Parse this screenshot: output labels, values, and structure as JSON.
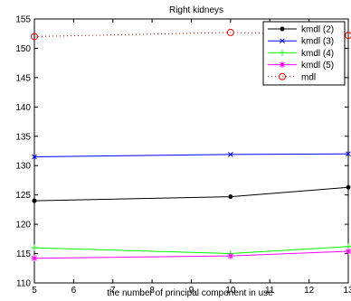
{
  "chart_data": {
    "type": "line",
    "title": "Right kidneys",
    "xlabel": "the number of principal component in use",
    "ylabel": "",
    "xlim": [
      5,
      13
    ],
    "ylim": [
      110,
      155
    ],
    "x_ticks": [
      5,
      6,
      7,
      8,
      9,
      10,
      11,
      12,
      13
    ],
    "y_ticks": [
      110,
      115,
      120,
      125,
      130,
      135,
      140,
      145,
      150,
      155
    ],
    "x_tick_labels": [
      "5",
      "6",
      "7",
      "8",
      "9",
      "10",
      "11",
      "12",
      "13"
    ],
    "y_tick_labels": [
      "110",
      "115",
      "120",
      "125",
      "130",
      "135",
      "140",
      "145",
      "150",
      "155"
    ],
    "grid": false,
    "legend_position": "top-right",
    "x": [
      5,
      10,
      13
    ],
    "series": [
      {
        "name": "kmdl (2)",
        "values": [
          124.0,
          124.7,
          126.3
        ],
        "color": "#000000",
        "marker": "dot",
        "line": "solid"
      },
      {
        "name": "kmdl (3)",
        "values": [
          131.5,
          131.9,
          132.0
        ],
        "color": "#0000ff",
        "marker": "x",
        "line": "solid"
      },
      {
        "name": "kmdl (4)",
        "values": [
          116.0,
          115.0,
          116.2
        ],
        "color": "#00ff00",
        "marker": "plus",
        "line": "solid"
      },
      {
        "name": "kmdl (5)",
        "values": [
          114.2,
          114.6,
          115.4
        ],
        "color": "#ff00ff",
        "marker": "star",
        "line": "solid"
      },
      {
        "name": "mdl",
        "values": [
          152.0,
          152.7,
          152.2
        ],
        "color": "#ff0000",
        "marker": "circle",
        "line": "dotted"
      }
    ]
  }
}
